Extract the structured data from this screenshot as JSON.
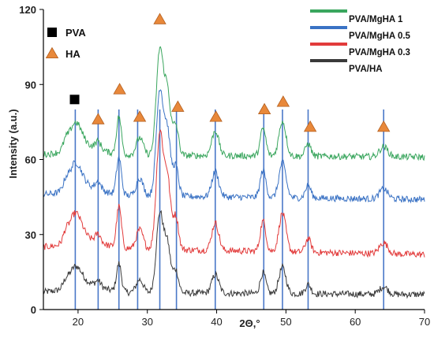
{
  "chart_data": {
    "type": "line",
    "title": "",
    "xlabel": "2Θ,°",
    "ylabel": "Intensity  (a.u.)",
    "xlim": [
      15,
      70
    ],
    "ylim": [
      0,
      120
    ],
    "xticks": [
      20,
      30,
      40,
      50,
      60,
      70
    ],
    "yticks": [
      0,
      30,
      60,
      90,
      120
    ],
    "grid": false,
    "legend_position": "top-right",
    "series": [
      {
        "name": "PVA/MgHA 1",
        "color": "#3aa65e",
        "base": 62,
        "scale": 1.0,
        "end_value": 61
      },
      {
        "name": "PVA/MgHA 0.5",
        "color": "#3a72c4",
        "base": 46,
        "scale": 1.0,
        "end_value": 44
      },
      {
        "name": "PVA/MgHA 0.3",
        "color": "#e23b3b",
        "base": 25,
        "scale": 1.1,
        "end_value": 22
      },
      {
        "name": "PVA/HA",
        "color": "#3a3a3a",
        "base": 7,
        "scale": 0.75,
        "end_value": 6
      }
    ],
    "peaks": [
      {
        "x": 18.2,
        "h": 2.5,
        "w": 0.35
      },
      {
        "x": 19.6,
        "h": 10,
        "w": 0.9
      },
      {
        "x": 22.9,
        "h": 3,
        "w": 0.4
      },
      {
        "x": 25.9,
        "h": 15,
        "w": 0.35
      },
      {
        "x": 28.9,
        "h": 7,
        "w": 0.5
      },
      {
        "x": 31.8,
        "h": 42,
        "w": 0.5
      },
      {
        "x": 32.9,
        "h": 25,
        "w": 0.45
      },
      {
        "x": 34.1,
        "h": 12,
        "w": 0.4
      },
      {
        "x": 39.8,
        "h": 10,
        "w": 0.5
      },
      {
        "x": 46.7,
        "h": 11,
        "w": 0.4
      },
      {
        "x": 49.5,
        "h": 14,
        "w": 0.5
      },
      {
        "x": 53.2,
        "h": 5,
        "w": 0.4
      },
      {
        "x": 64.1,
        "h": 4,
        "w": 0.6
      }
    ],
    "reference_lines_x": [
      19.6,
      22.9,
      25.9,
      28.6,
      31.8,
      34.2,
      39.8,
      46.8,
      49.5,
      53.2,
      64.1
    ],
    "reference_line_color": "#4a78c8",
    "markers": [
      {
        "label": "PVA",
        "shape": "square",
        "color": "#000000",
        "points": [
          {
            "x": 19.5,
            "y": 84
          }
        ]
      },
      {
        "label": "HA",
        "shape": "triangle",
        "color": "#e8883a",
        "points": [
          {
            "x": 22.9,
            "y": 76
          },
          {
            "x": 26.0,
            "y": 88
          },
          {
            "x": 28.9,
            "y": 77
          },
          {
            "x": 31.8,
            "y": 116
          },
          {
            "x": 34.4,
            "y": 81
          },
          {
            "x": 39.9,
            "y": 77
          },
          {
            "x": 46.9,
            "y": 80
          },
          {
            "x": 49.6,
            "y": 83
          },
          {
            "x": 53.5,
            "y": 73
          },
          {
            "x": 64.1,
            "y": 73
          }
        ]
      }
    ]
  }
}
